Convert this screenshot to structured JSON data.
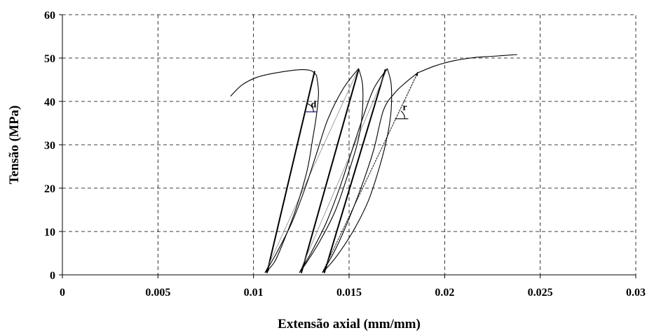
{
  "chart_data": {
    "type": "line",
    "title": "",
    "xlabel": "Extensão axial (mm/mm)",
    "ylabel": "Tensão (MPa)",
    "xlim": [
      0,
      0.03
    ],
    "ylim": [
      0,
      60
    ],
    "x_ticks": [
      "0",
      "0.005",
      "0.01",
      "0.015",
      "0.02",
      "0.025",
      "0.03"
    ],
    "y_ticks": [
      "0",
      "10",
      "20",
      "30",
      "40",
      "50",
      "60"
    ],
    "grid": true,
    "legend": "none",
    "series": [
      {
        "id": "envelope",
        "points": [
          [
            0.0088,
            41.2
          ],
          [
            0.0094,
            43.8
          ],
          [
            0.0102,
            45.6
          ],
          [
            0.0112,
            46.6
          ],
          [
            0.0124,
            47.3
          ],
          [
            0.013,
            47.1
          ],
          [
            0.0133,
            46.0
          ]
        ]
      },
      {
        "id": "unloading-1",
        "points": [
          [
            0.0133,
            46.0
          ],
          [
            0.0134,
            42.0
          ],
          [
            0.0133,
            37.0
          ],
          [
            0.0131,
            31.5
          ],
          [
            0.0128,
            24.0
          ],
          [
            0.0122,
            15.0
          ],
          [
            0.0116,
            8.0
          ],
          [
            0.0111,
            3.0
          ],
          [
            0.0106,
            0.5
          ]
        ]
      },
      {
        "id": "reloading-1",
        "points": [
          [
            0.0106,
            0.5
          ],
          [
            0.0112,
            5.0
          ],
          [
            0.012,
            12.0
          ],
          [
            0.0127,
            20.0
          ],
          [
            0.0133,
            28.0
          ],
          [
            0.0139,
            36.0
          ],
          [
            0.0147,
            43.0
          ],
          [
            0.0155,
            47.6
          ]
        ]
      },
      {
        "id": "unloading-2",
        "points": [
          [
            0.0155,
            47.6
          ],
          [
            0.0157,
            44.0
          ],
          [
            0.0157,
            38.0
          ],
          [
            0.0155,
            31.5
          ],
          [
            0.015,
            24.0
          ],
          [
            0.0143,
            15.0
          ],
          [
            0.0135,
            8.0
          ],
          [
            0.0128,
            3.0
          ],
          [
            0.0124,
            0.5
          ]
        ]
      },
      {
        "id": "reloading-2",
        "points": [
          [
            0.0124,
            0.5
          ],
          [
            0.013,
            5.0
          ],
          [
            0.0138,
            12.0
          ],
          [
            0.0145,
            20.0
          ],
          [
            0.0151,
            28.0
          ],
          [
            0.0157,
            36.0
          ],
          [
            0.0163,
            43.0
          ],
          [
            0.017,
            47.6
          ]
        ]
      },
      {
        "id": "unloading-3",
        "points": [
          [
            0.017,
            47.6
          ],
          [
            0.0172,
            44.0
          ],
          [
            0.0172,
            38.0
          ],
          [
            0.017,
            32.0
          ],
          [
            0.0166,
            25.0
          ],
          [
            0.016,
            17.0
          ],
          [
            0.0152,
            10.0
          ],
          [
            0.0143,
            4.0
          ],
          [
            0.0136,
            0.5
          ]
        ]
      },
      {
        "id": "reloading-3",
        "points": [
          [
            0.0136,
            0.5
          ],
          [
            0.0143,
            6.0
          ],
          [
            0.015,
            13.0
          ],
          [
            0.0157,
            21.0
          ],
          [
            0.0163,
            29.0
          ],
          [
            0.0168,
            38.0
          ],
          [
            0.0174,
            42.0
          ],
          [
            0.018,
            44.5
          ],
          [
            0.0186,
            46.6
          ]
        ]
      },
      {
        "id": "post-peak",
        "points": [
          [
            0.0186,
            46.6
          ],
          [
            0.0195,
            48.2
          ],
          [
            0.0205,
            49.4
          ],
          [
            0.0215,
            50.1
          ],
          [
            0.0225,
            50.4
          ],
          [
            0.0238,
            50.8
          ]
        ]
      }
    ],
    "straight_lines": [
      {
        "id": "bold-1",
        "style": "bold",
        "from": [
          0.0107,
          0.4
        ],
        "to": [
          0.0132,
          47.0
        ]
      },
      {
        "id": "bold-2",
        "style": "bold",
        "from": [
          0.0125,
          0.4
        ],
        "to": [
          0.0155,
          47.4
        ]
      },
      {
        "id": "bold-3",
        "style": "bold",
        "from": [
          0.0137,
          0.4
        ],
        "to": [
          0.0169,
          47.4
        ]
      },
      {
        "id": "thin-1",
        "style": "thin",
        "from": [
          0.0106,
          0.5
        ],
        "to": [
          0.0155,
          47.6
        ]
      },
      {
        "id": "thin-2",
        "style": "thin",
        "from": [
          0.0124,
          0.5
        ],
        "to": [
          0.017,
          47.6
        ]
      },
      {
        "id": "thin-3",
        "style": "thin",
        "from": [
          0.0136,
          0.5
        ],
        "to": [
          0.0186,
          46.6
        ]
      },
      {
        "id": "dotted-r",
        "style": "dotted",
        "from": [
          0.0136,
          0.5
        ],
        "to": [
          0.0186,
          46.8
        ]
      },
      {
        "id": "angle-d-base",
        "style": "blue",
        "from": [
          0.0127,
          37.6
        ],
        "to": [
          0.0133,
          37.6
        ]
      },
      {
        "id": "angle-r-base",
        "style": "plain",
        "from": [
          0.0174,
          36.0
        ],
        "to": [
          0.0181,
          36.0
        ]
      }
    ],
    "annotations": [
      {
        "text": "d",
        "x": 0.013,
        "y": 38.6
      },
      {
        "text": "r",
        "x": 0.0178,
        "y": 38.0
      }
    ]
  }
}
